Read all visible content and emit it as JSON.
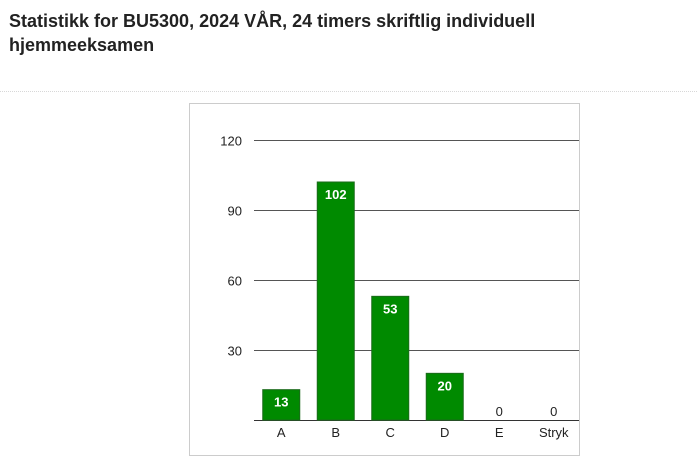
{
  "page": {
    "title": "Statistikk for BU5300, 2024 VÅR, 24 timers skriftlig individuell hjemmeeksamen"
  },
  "chart_data": {
    "type": "bar",
    "categories": [
      "A",
      "B",
      "C",
      "D",
      "E",
      "Stryk"
    ],
    "values": [
      13,
      102,
      53,
      20,
      0,
      0
    ],
    "data_labels": [
      "13",
      "102",
      "53",
      "20",
      "0",
      "0"
    ],
    "ylim": [
      0,
      120
    ],
    "yticks": [
      30,
      60,
      90,
      120
    ],
    "grid": true,
    "legend": "none",
    "bar_color": "#008a00",
    "bar_edge_color": "#1a6b1a",
    "grid_color": "#555555"
  }
}
